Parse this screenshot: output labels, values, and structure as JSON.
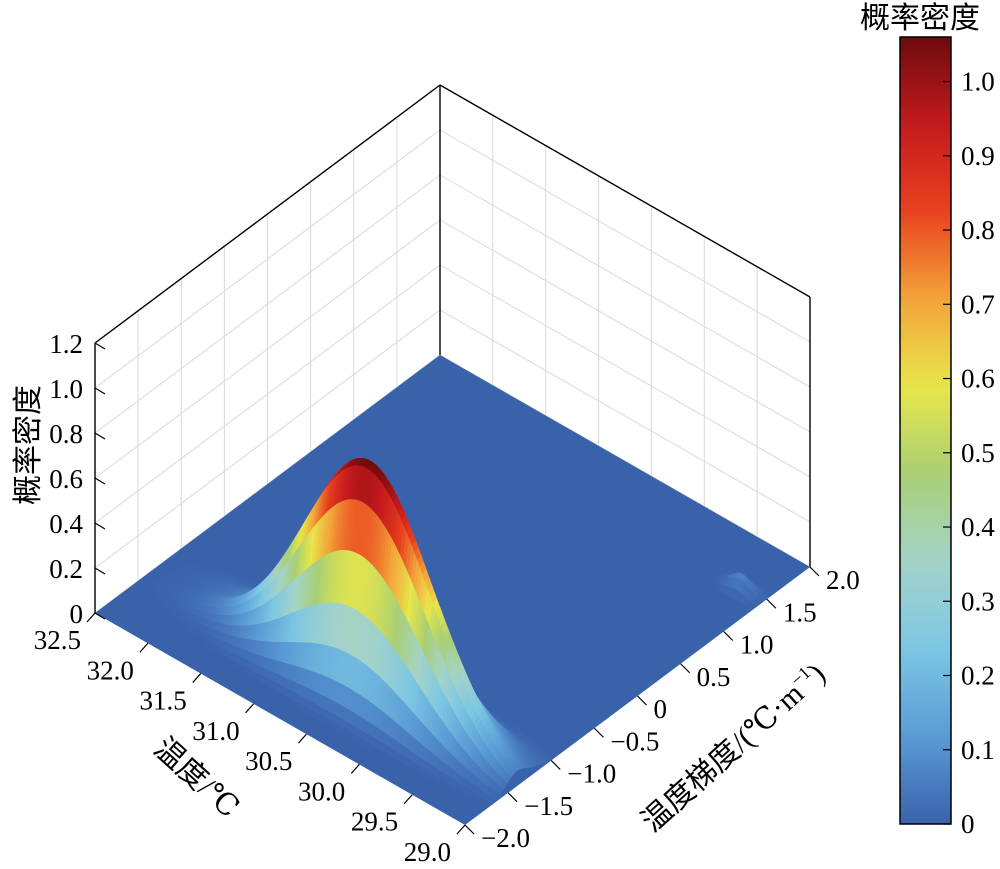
{
  "chart_data": {
    "type": "surface3d",
    "zlabel": "概率密度",
    "xlabel": "温度/℃",
    "ylabel": "温度梯度/(℃·m",
    "ylabel_sup": "−1",
    "ylabel_close": ")",
    "colorbar_label": "概率密度",
    "x_ticks": [
      "32.5",
      "32.0",
      "31.5",
      "31.0",
      "30.5",
      "30.0",
      "29.5",
      "29.0"
    ],
    "x_range": [
      29.0,
      32.5
    ],
    "y_ticks": [
      "−2.0",
      "−1.5",
      "−1.0",
      "−0.5",
      "0",
      "0.5",
      "1.0",
      "1.5",
      "2.0"
    ],
    "y_range": [
      -2.0,
      2.0
    ],
    "z_ticks": [
      "0",
      "0.2",
      "0.4",
      "0.6",
      "0.8",
      "1.0",
      "1.2"
    ],
    "z_range": [
      0,
      1.2
    ],
    "colorbar_ticks": [
      "0",
      "0.1",
      "0.2",
      "0.3",
      "0.4",
      "0.5",
      "0.6",
      "0.7",
      "0.8",
      "0.9",
      "1.0"
    ],
    "colorbar_range": [
      0,
      1.06
    ],
    "colormap": [
      "#3a62ab",
      "#5a9bd5",
      "#7cc7e4",
      "#a4d3c8",
      "#a9cf74",
      "#e8e64a",
      "#f3a43a",
      "#e8421f",
      "#c41a1e",
      "#6e0b0c"
    ],
    "peaks": [
      {
        "x_temperature": 30.4,
        "y_gradient": -1.4,
        "density": 1.05,
        "temperature_sigma": 0.6,
        "gradient_sigma": 0.12
      },
      {
        "x_temperature": 30.5,
        "y_gradient": -1.15,
        "density": 0.4,
        "temperature_sigma": 0.6,
        "gradient_sigma": 0.1
      },
      {
        "x_temperature": 29.2,
        "y_gradient": 1.45,
        "density": 0.07,
        "temperature_sigma": 0.1,
        "gradient_sigma": 0.05
      }
    ],
    "grid": true,
    "colorbar": "right"
  }
}
